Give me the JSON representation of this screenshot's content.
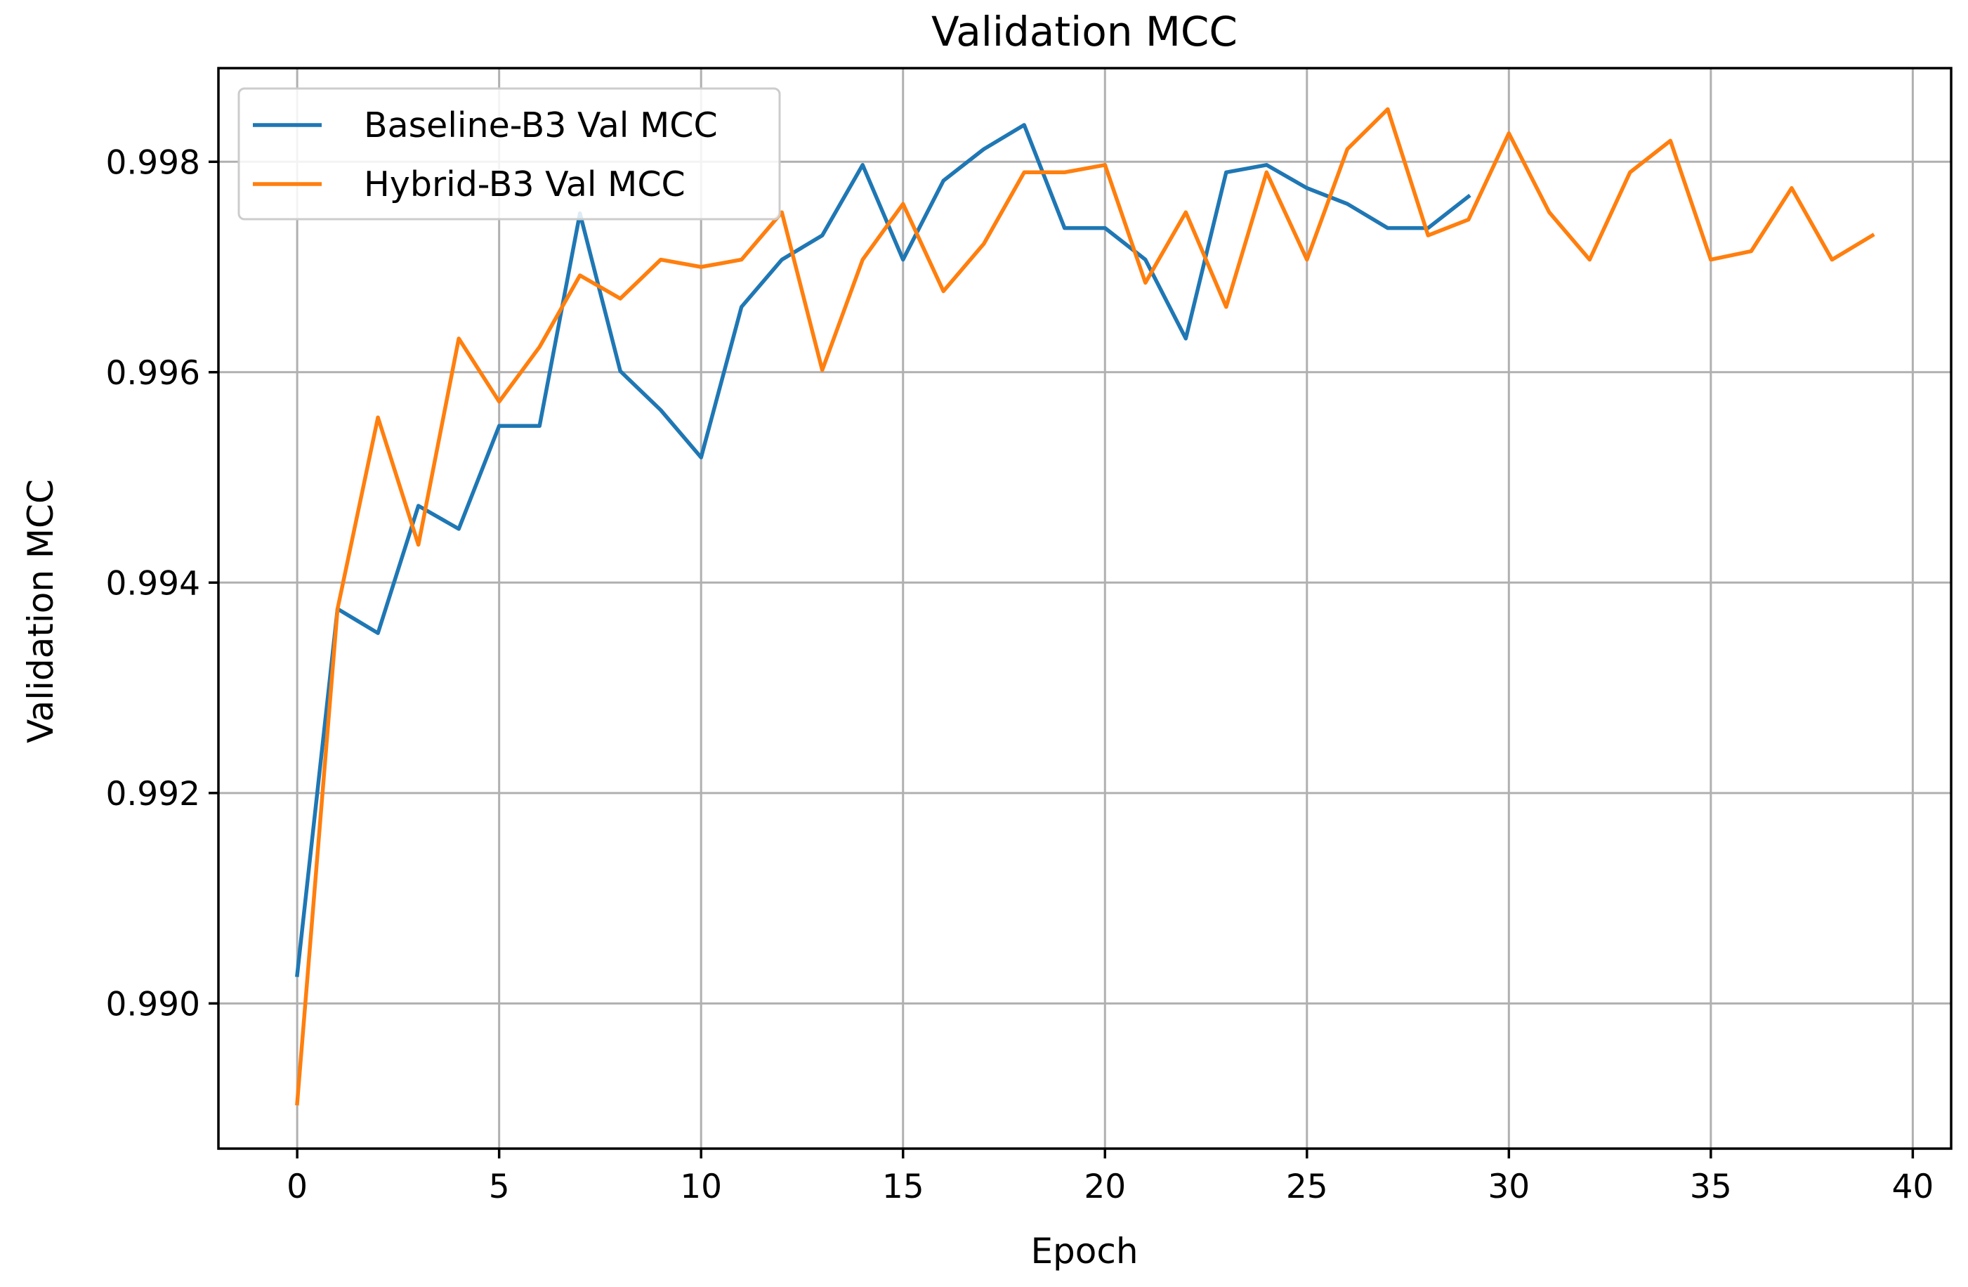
{
  "chart_data": {
    "type": "line",
    "title": "Validation MCC",
    "xlabel": "Epoch",
    "ylabel": "Validation MCC",
    "xlim": [
      -1.95,
      40.95
    ],
    "ylim": [
      0.98862,
      0.99889
    ],
    "x_ticks": [
      0,
      5,
      10,
      15,
      20,
      25,
      30,
      35,
      40
    ],
    "y_ticks": [
      0.99,
      0.992,
      0.994,
      0.996,
      0.998
    ],
    "y_tick_labels": [
      "0.990",
      "0.992",
      "0.994",
      "0.996",
      "0.998"
    ],
    "grid": true,
    "legend_position": "upper-left",
    "series": [
      {
        "name": "Baseline-B3 Val MCC",
        "color": "#1f77b4",
        "x": [
          0,
          1,
          2,
          3,
          4,
          5,
          6,
          7,
          8,
          9,
          10,
          11,
          12,
          13,
          14,
          15,
          16,
          17,
          18,
          19,
          20,
          21,
          22,
          23,
          24,
          25,
          26,
          27,
          28,
          29
        ],
        "values": [
          0.99027,
          0.99375,
          0.99352,
          0.99473,
          0.99451,
          0.99549,
          0.99549,
          0.99751,
          0.99601,
          0.99564,
          0.99519,
          0.99662,
          0.99707,
          0.9973,
          0.99797,
          0.99707,
          0.99782,
          0.99812,
          0.99835,
          0.99737,
          0.99737,
          0.99707,
          0.99632,
          0.9979,
          0.99797,
          0.99775,
          0.9976,
          0.99737,
          0.99737,
          0.99767
        ]
      },
      {
        "name": "Hybrid-B3 Val MCC",
        "color": "#ff7f0e",
        "x": [
          0,
          1,
          2,
          3,
          4,
          5,
          6,
          7,
          8,
          9,
          10,
          11,
          12,
          13,
          14,
          15,
          16,
          17,
          18,
          19,
          20,
          21,
          22,
          23,
          24,
          25,
          26,
          27,
          28,
          29,
          30,
          31,
          32,
          33,
          34,
          35,
          36,
          37,
          38,
          39
        ],
        "values": [
          0.98905,
          0.99375,
          0.99557,
          0.99436,
          0.99632,
          0.99572,
          0.99624,
          0.99692,
          0.9967,
          0.99707,
          0.997,
          0.99707,
          0.99752,
          0.99602,
          0.99707,
          0.9976,
          0.99677,
          0.99722,
          0.9979,
          0.9979,
          0.99797,
          0.99685,
          0.99752,
          0.99662,
          0.9979,
          0.99707,
          0.99812,
          0.9985,
          0.9973,
          0.99745,
          0.99827,
          0.99752,
          0.99707,
          0.9979,
          0.9982,
          0.99707,
          0.99715,
          0.99775,
          0.99707,
          0.9973
        ]
      }
    ]
  }
}
